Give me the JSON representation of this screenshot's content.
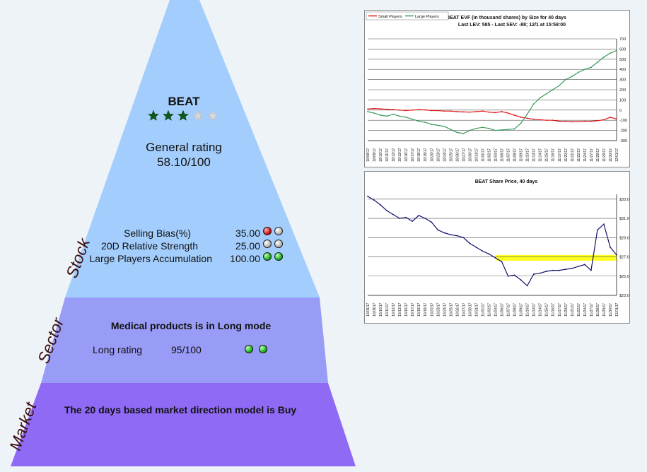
{
  "ticker": "BEAT",
  "stars": {
    "filled": 3,
    "total": 5
  },
  "general_rating": {
    "label": "General rating",
    "value": "58.10/100"
  },
  "stock": {
    "label": "Stock",
    "rows": [
      {
        "name": "Selling Bias(%)",
        "value": "35.00",
        "balls": [
          "red",
          "grey"
        ]
      },
      {
        "name": "20D Relative Strength",
        "value": "25.00",
        "balls": [
          "grey",
          "grey"
        ]
      },
      {
        "name": "Large Players Accumulation",
        "value": "100.00",
        "balls": [
          "green",
          "green"
        ]
      }
    ]
  },
  "sector": {
    "label": "Sector",
    "headline": "Medical products is in Long mode",
    "rating_label": "Long rating",
    "rating_value": "95/100",
    "balls": [
      "green",
      "green"
    ]
  },
  "market": {
    "label": "Market",
    "headline": "The 20 days based market direction model is Buy"
  },
  "colors": {
    "stock_band": "#a3cdfc",
    "sector_band": "#999cf6",
    "market_band": "#8f6af5",
    "small_players": "#e01818",
    "large_players": "#3a9a5a",
    "price": "#10106a",
    "highlight": "#ffff20",
    "star_filled": "#0d5a1a",
    "star_empty": "#d8d8d8"
  },
  "chart_data": [
    {
      "type": "line",
      "title": "BEAT EVF (in thousand shares) by Size for 40 days",
      "subtitle": "Last LEV: 585 - Last SEV: -88; 12/1 at 15:59:00",
      "legend": [
        "Small Players",
        "Large Players"
      ],
      "legend_position": "top-left",
      "ylim": [
        -300,
        700
      ],
      "yticks": [
        700,
        600,
        500,
        400,
        300,
        200,
        100,
        0,
        -100,
        -200,
        -300
      ],
      "grid": true,
      "x": [
        "10/06/17",
        "10/09/17",
        "10/10/17",
        "10/11/17",
        "10/12/17",
        "10/13/17",
        "10/16/17",
        "10/17/17",
        "10/18/17",
        "10/19/17",
        "10/20/17",
        "10/23/17",
        "10/24/17",
        "10/25/17",
        "10/26/17",
        "10/27/17",
        "10/30/17",
        "10/31/17",
        "11/01/17",
        "11/02/17",
        "11/03/17",
        "11/06/17",
        "11/07/17",
        "11/08/17",
        "11/09/17",
        "11/10/17",
        "11/13/17",
        "11/14/17",
        "11/15/17",
        "11/16/17",
        "11/17/17",
        "11/20/17",
        "11/21/17",
        "11/22/17",
        "11/24/17",
        "11/27/17",
        "11/28/17",
        "11/29/17",
        "11/30/17",
        "12/01/17"
      ],
      "series": [
        {
          "name": "Small Players",
          "values": [
            10,
            15,
            12,
            8,
            5,
            0,
            -5,
            0,
            5,
            2,
            -5,
            -5,
            -10,
            -10,
            -15,
            -18,
            -20,
            -15,
            -10,
            -20,
            -25,
            -15,
            -30,
            -50,
            -70,
            -80,
            -90,
            -95,
            -100,
            -100,
            -110,
            -110,
            -115,
            -115,
            -110,
            -110,
            -105,
            -95,
            -70,
            -88
          ]
        },
        {
          "name": "Large Players",
          "values": [
            -15,
            -30,
            -50,
            -60,
            -40,
            -60,
            -70,
            -90,
            -110,
            -120,
            -140,
            -150,
            -160,
            -190,
            -220,
            -230,
            -200,
            -180,
            -170,
            -180,
            -200,
            -195,
            -190,
            -185,
            -130,
            -40,
            60,
            120,
            160,
            200,
            240,
            300,
            330,
            370,
            400,
            420,
            470,
            520,
            560,
            585
          ]
        }
      ]
    },
    {
      "type": "line",
      "title": "BEAT Share Price, 40 days",
      "ylim": [
        23,
        33.5
      ],
      "yticks": [
        33,
        31,
        29,
        27,
        25,
        23
      ],
      "ytick_labels": [
        "$33.0",
        "$31.0",
        "$29.0",
        "$27.0",
        "$25.0",
        "$23.0"
      ],
      "grid": true,
      "highlight_band": [
        26.6,
        27.2
      ],
      "x": [
        "10/06/17",
        "10/09/17",
        "10/10/17",
        "10/11/17",
        "10/12/17",
        "10/13/17",
        "10/16/17",
        "10/17/17",
        "10/18/17",
        "10/19/17",
        "10/20/17",
        "10/23/17",
        "10/24/17",
        "10/25/17",
        "10/26/17",
        "10/27/17",
        "10/30/17",
        "10/31/17",
        "11/01/17",
        "11/02/17",
        "11/03/17",
        "11/06/17",
        "11/07/17",
        "11/08/17",
        "11/09/17",
        "11/10/17",
        "11/13/17",
        "11/14/17",
        "11/15/17",
        "11/16/17",
        "11/17/17",
        "11/20/17",
        "11/21/17",
        "11/22/17",
        "11/24/17",
        "11/27/17",
        "11/28/17",
        "11/29/17",
        "11/30/17",
        "12/01/17"
      ],
      "series": [
        {
          "name": "",
          "values": [
            33.3,
            32.9,
            32.4,
            31.8,
            31.4,
            31.0,
            31.1,
            30.7,
            31.3,
            31.0,
            30.6,
            29.8,
            29.5,
            29.3,
            29.2,
            29.0,
            28.4,
            28.0,
            27.6,
            27.3,
            26.9,
            26.5,
            25.0,
            25.1,
            24.6,
            24.0,
            25.2,
            25.3,
            25.5,
            25.6,
            25.6,
            25.7,
            25.8,
            26.0,
            26.2,
            25.6,
            29.8,
            30.4,
            28.0,
            27.2
          ]
        }
      ]
    }
  ]
}
